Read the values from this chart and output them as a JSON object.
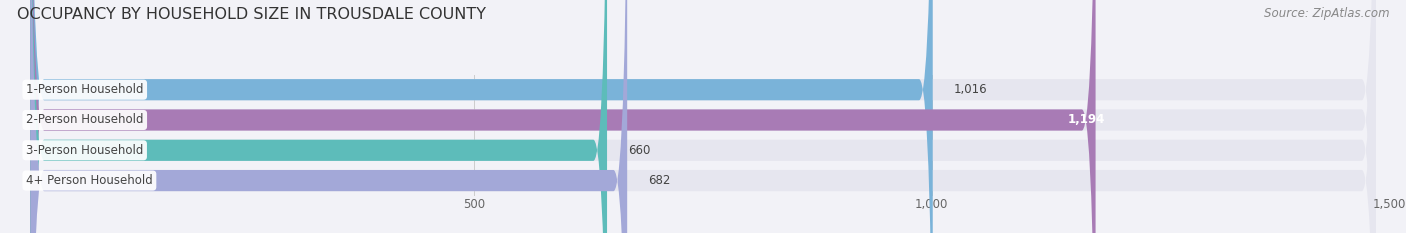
{
  "title": "OCCUPANCY BY HOUSEHOLD SIZE IN TROUSDALE COUNTY",
  "source": "Source: ZipAtlas.com",
  "categories": [
    "1-Person Household",
    "2-Person Household",
    "3-Person Household",
    "4+ Person Household"
  ],
  "values": [
    1016,
    1194,
    660,
    682
  ],
  "bar_colors": [
    "#7ab3d9",
    "#a87bb5",
    "#5dbcba",
    "#a3a8d8"
  ],
  "xlim": [
    0,
    1500
  ],
  "xticks": [
    500,
    1000,
    1500
  ],
  "value_labels": [
    "1,016",
    "1,194",
    "660",
    "682"
  ],
  "label_inside": [
    false,
    true,
    false,
    false
  ],
  "background_color": "#f2f2f7",
  "bar_bg_color": "#e6e6ef",
  "title_fontsize": 11.5,
  "source_fontsize": 8.5,
  "bar_label_fontsize": 8.5,
  "category_fontsize": 8.5
}
